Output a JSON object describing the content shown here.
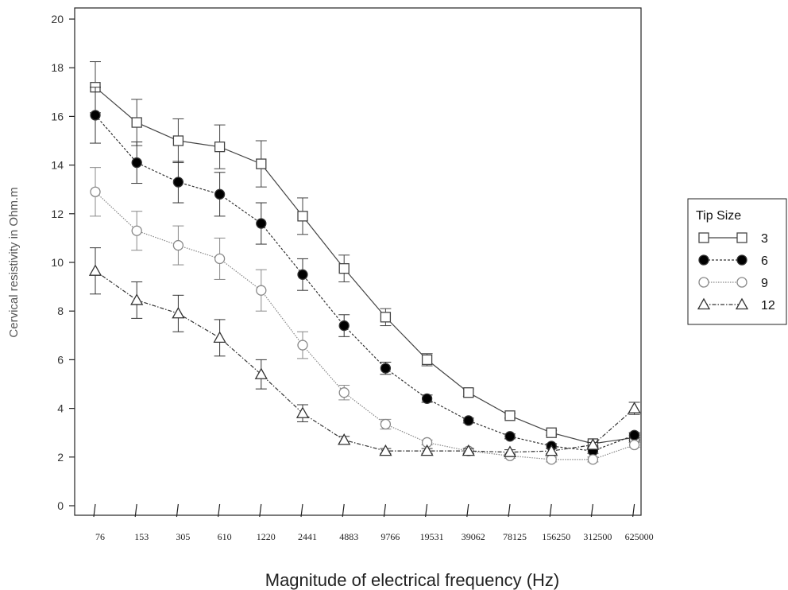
{
  "chart_data": {
    "type": "line",
    "categories": [
      "76",
      "153",
      "305",
      "610",
      "1220",
      "2441",
      "4883",
      "9766",
      "19531",
      "39062",
      "78125",
      "156250",
      "312500",
      "625000"
    ],
    "ylabel": "Cervical resistivity in Ohm.m",
    "xlabel": "Magnitude of electrical frequency (Hz)",
    "ylim": [
      0,
      20
    ],
    "yticks": [
      0,
      2,
      4,
      6,
      8,
      10,
      12,
      14,
      16,
      18,
      20
    ],
    "legend": {
      "title": "Tip Size",
      "position": "right"
    },
    "series": [
      {
        "name": "3",
        "marker": "square-open",
        "line": "solid",
        "color": "#444444",
        "values": [
          17.2,
          15.75,
          15.0,
          14.75,
          14.05,
          11.9,
          9.75,
          7.75,
          6.0,
          4.65,
          3.7,
          3.0,
          2.55,
          2.8
        ],
        "errors": [
          1.05,
          0.95,
          0.9,
          0.9,
          0.95,
          0.75,
          0.55,
          0.35,
          0.25,
          0.15,
          0.1,
          0.1,
          0.1,
          0.1
        ]
      },
      {
        "name": "6",
        "marker": "circle-filled",
        "line": "dashed",
        "color": "#333333",
        "values": [
          16.05,
          14.1,
          13.3,
          12.8,
          11.6,
          9.5,
          7.4,
          5.65,
          4.4,
          3.5,
          2.85,
          2.45,
          2.25,
          2.9
        ],
        "errors": [
          1.15,
          0.85,
          0.85,
          0.9,
          0.85,
          0.65,
          0.45,
          0.25,
          0.15,
          0.1,
          0.1,
          0.1,
          0.1,
          0.1
        ]
      },
      {
        "name": "9",
        "marker": "circle-open",
        "line": "dotted",
        "color": "#888888",
        "values": [
          12.9,
          11.3,
          10.7,
          10.15,
          8.85,
          6.6,
          4.65,
          3.35,
          2.6,
          2.25,
          2.05,
          1.9,
          1.9,
          2.5
        ],
        "errors": [
          1.0,
          0.8,
          0.8,
          0.85,
          0.85,
          0.55,
          0.3,
          0.2,
          0.1,
          0.1,
          0.1,
          0.1,
          0.1,
          0.1
        ]
      },
      {
        "name": "12",
        "marker": "triangle-open",
        "line": "dashdot",
        "color": "#333333",
        "values": [
          9.65,
          8.45,
          7.9,
          6.9,
          5.4,
          3.8,
          2.7,
          2.25,
          2.25,
          2.25,
          2.2,
          2.25,
          2.5,
          4.0
        ],
        "errors": [
          0.95,
          0.75,
          0.75,
          0.75,
          0.6,
          0.35,
          0.15,
          0.1,
          0.1,
          0.1,
          0.1,
          0.1,
          0.1,
          0.25
        ]
      }
    ]
  }
}
